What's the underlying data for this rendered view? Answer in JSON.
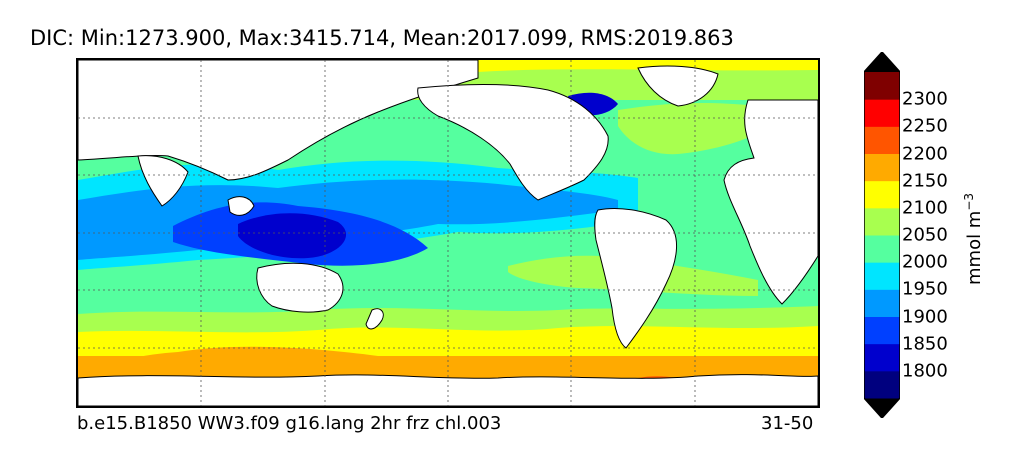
{
  "title": "DIC: Min:1273.900, Max:3415.714, Mean:2017.099, RMS:2019.863",
  "caption_left": "b.e15.B1850 WW3.f09 g16.lang 2hr frz chl.003",
  "caption_right": "31-50",
  "colorbar": {
    "units": "mmol m",
    "units_exponent": "−3",
    "tick_labels": [
      "1800",
      "1850",
      "1900",
      "1950",
      "2000",
      "2050",
      "2100",
      "2150",
      "2200",
      "2250",
      "2300"
    ],
    "colors": [
      "#00007f",
      "#0000cd",
      "#0040ff",
      "#0099ff",
      "#00e5ff",
      "#55ff9f",
      "#a8ff4f",
      "#ffff00",
      "#ffaa00",
      "#ff5500",
      "#ff0000",
      "#7f0000"
    ],
    "under_color": "#000000",
    "over_color": "#000000"
  },
  "colors": {
    "land": "#ffffff",
    "coastline": "#000000",
    "grid": "#555555"
  }
}
